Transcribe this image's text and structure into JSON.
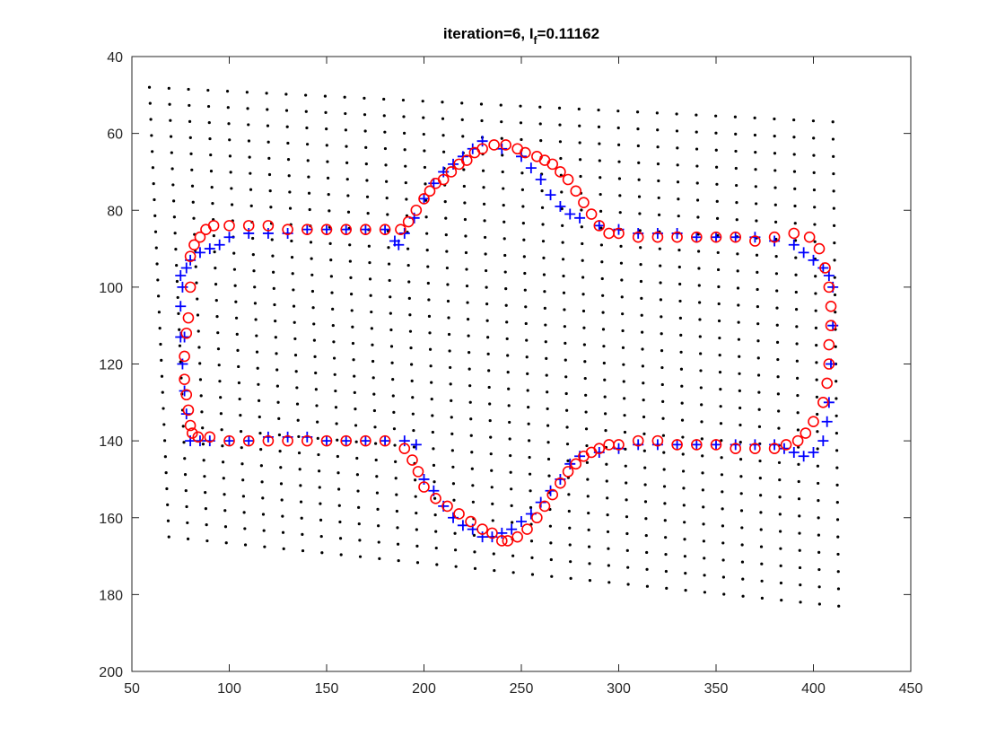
{
  "chart_data": {
    "type": "scatter",
    "title": "iteration=6,  I",
    "title_subscript": "f",
    "title_suffix": "=0.11162",
    "xlabel": "",
    "ylabel": "",
    "xlim": [
      50,
      450
    ],
    "ylim": [
      40,
      200
    ],
    "y_reversed": true,
    "grid": false,
    "x_ticks": [
      50,
      100,
      150,
      200,
      250,
      300,
      350,
      400,
      450
    ],
    "y_ticks": [
      40,
      60,
      80,
      100,
      120,
      140,
      160,
      180,
      200
    ],
    "x_tick_labels": [
      "50",
      "100",
      "150",
      "200",
      "250",
      "300",
      "350",
      "400",
      "450"
    ],
    "y_tick_labels": [
      "40",
      "60",
      "80",
      "100",
      "120",
      "140",
      "160",
      "180",
      "200"
    ],
    "colors": {
      "grid_points": "#000000",
      "plus_series": "#0000ff",
      "circle_series": "#ff0000",
      "axes": "#262626"
    },
    "grid_points": {
      "marker": "dot",
      "cols": 36,
      "rows": 29,
      "top_left": [
        59,
        48
      ],
      "top_right": [
        410,
        57
      ],
      "bottom_left": [
        69,
        165
      ],
      "bottom_right": [
        413,
        183
      ]
    },
    "series": [
      {
        "marker": "plus",
        "x": [
          75,
          78,
          80,
          85,
          90,
          95,
          100,
          110,
          120,
          130,
          140,
          150,
          160,
          170,
          180,
          185,
          187,
          190,
          195,
          200,
          205,
          210,
          215,
          220,
          225,
          230,
          240,
          250,
          255,
          260,
          265,
          270,
          275,
          280,
          290,
          300,
          310,
          320,
          330,
          340,
          350,
          360,
          370,
          380,
          390,
          395,
          400,
          405,
          408,
          410,
          410,
          409,
          408,
          407,
          405,
          400,
          395,
          390,
          385,
          380,
          370,
          360,
          350,
          340,
          330,
          320,
          310,
          300,
          290,
          280,
          275,
          270,
          265,
          260,
          255,
          250,
          245,
          240,
          235,
          230,
          225,
          220,
          215,
          210,
          205,
          200,
          196,
          190,
          180,
          170,
          160,
          150,
          140,
          130,
          120,
          110,
          100,
          90,
          85,
          80,
          78,
          77,
          76,
          75,
          75,
          76,
          77
        ],
        "y": [
          97,
          95,
          93,
          91,
          90,
          89,
          87,
          86,
          86,
          86,
          85,
          85,
          85,
          85,
          85,
          88,
          89,
          86,
          82,
          77,
          73,
          70,
          68,
          66,
          64,
          62,
          64,
          66,
          69,
          72,
          76,
          79,
          81,
          82,
          84,
          85,
          86,
          86,
          86,
          87,
          87,
          87,
          87,
          88,
          89,
          91,
          93,
          95,
          97,
          100,
          110,
          120,
          130,
          135,
          140,
          143,
          144,
          143,
          142,
          141,
          141,
          141,
          141,
          141,
          141,
          141,
          141,
          142,
          143,
          144,
          146,
          150,
          153,
          156,
          159,
          161,
          163,
          164,
          165,
          165,
          163,
          162,
          160,
          157,
          153,
          150,
          141,
          140,
          140,
          140,
          140,
          140,
          139,
          139,
          139,
          140,
          140,
          140,
          140,
          140,
          133,
          127,
          120,
          113,
          105,
          100,
          113
        ],
        "name": ""
      },
      {
        "marker": "circle",
        "x": [
          80,
          82,
          85,
          88,
          92,
          100,
          110,
          120,
          130,
          140,
          150,
          160,
          170,
          180,
          188,
          192,
          196,
          200,
          203,
          206,
          210,
          214,
          218,
          222,
          226,
          230,
          236,
          242,
          248,
          252,
          258,
          262,
          266,
          270,
          274,
          278,
          282,
          286,
          290,
          295,
          300,
          310,
          320,
          330,
          340,
          350,
          360,
          370,
          380,
          390,
          398,
          403,
          406,
          408,
          409,
          409,
          408,
          408,
          407,
          405,
          400,
          396,
          392,
          386,
          380,
          370,
          360,
          350,
          340,
          330,
          320,
          310,
          300,
          295,
          290,
          286,
          282,
          278,
          274,
          270,
          266,
          262,
          258,
          253,
          248,
          243,
          240,
          235,
          230,
          224,
          218,
          212,
          206,
          200,
          197,
          194,
          190,
          180,
          170,
          160,
          150,
          140,
          130,
          120,
          110,
          100,
          90,
          84,
          81,
          80,
          79,
          78,
          77,
          77,
          78,
          79,
          80
        ],
        "y": [
          92,
          89,
          87,
          85,
          84,
          84,
          84,
          84,
          85,
          85,
          85,
          85,
          85,
          85,
          85,
          83,
          80,
          77,
          75,
          73,
          72,
          70,
          68,
          67,
          65,
          64,
          63,
          63,
          64,
          65,
          66,
          67,
          68,
          70,
          72,
          75,
          78,
          81,
          84,
          86,
          86,
          87,
          87,
          87,
          87,
          87,
          87,
          88,
          87,
          86,
          87,
          90,
          95,
          100,
          105,
          110,
          115,
          120,
          125,
          130,
          135,
          138,
          140,
          141,
          142,
          142,
          142,
          141,
          141,
          141,
          140,
          140,
          141,
          141,
          142,
          143,
          144,
          146,
          148,
          151,
          154,
          157,
          160,
          163,
          165,
          166,
          166,
          164,
          163,
          161,
          159,
          157,
          155,
          152,
          148,
          145,
          142,
          140,
          140,
          140,
          140,
          140,
          140,
          140,
          140,
          140,
          139,
          139,
          138,
          136,
          132,
          128,
          124,
          118,
          112,
          108,
          100
        ],
        "name": ""
      }
    ]
  }
}
